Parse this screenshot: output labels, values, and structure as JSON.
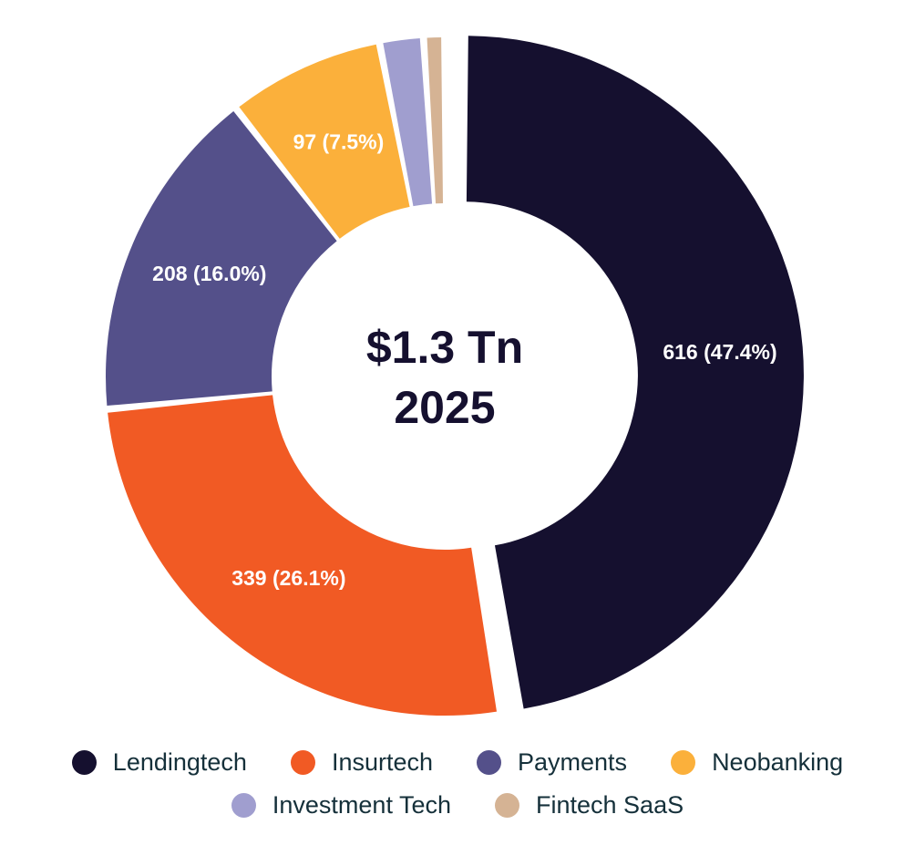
{
  "chart_data": {
    "type": "pie",
    "donut": true,
    "center_label": {
      "line1": "$1.3 Tn",
      "line2": "2025"
    },
    "slices": [
      {
        "name": "Lendingtech",
        "value": 616,
        "percent": 47.4,
        "label": "616 (47.4%)",
        "color": "#15102f",
        "exploded": true
      },
      {
        "name": "Insurtech",
        "value": 339,
        "percent": 26.1,
        "label": "339 (26.1%)",
        "color": "#f15a24",
        "exploded": false
      },
      {
        "name": "Payments",
        "value": 208,
        "percent": 16.0,
        "label": "208 (16.0%)",
        "color": "#54508a",
        "exploded": false
      },
      {
        "name": "Neobanking",
        "value": 97,
        "percent": 7.5,
        "label": "97 (7.5%)",
        "color": "#fbb03b",
        "exploded": false
      },
      {
        "name": "Investment Tech",
        "value": 27,
        "percent": 2.1,
        "label": "",
        "color": "#a09ecf",
        "exploded": false
      },
      {
        "name": "Fintech SaaS",
        "value": 13,
        "percent": 1.0,
        "label": "",
        "color": "#d5b394",
        "exploded": false
      }
    ],
    "legend": {
      "placement": "bottom",
      "rows": [
        [
          "Lendingtech",
          "Insurtech",
          "Payments",
          "Neobanking"
        ],
        [
          "Investment Tech",
          "Fintech SaaS"
        ]
      ]
    }
  }
}
